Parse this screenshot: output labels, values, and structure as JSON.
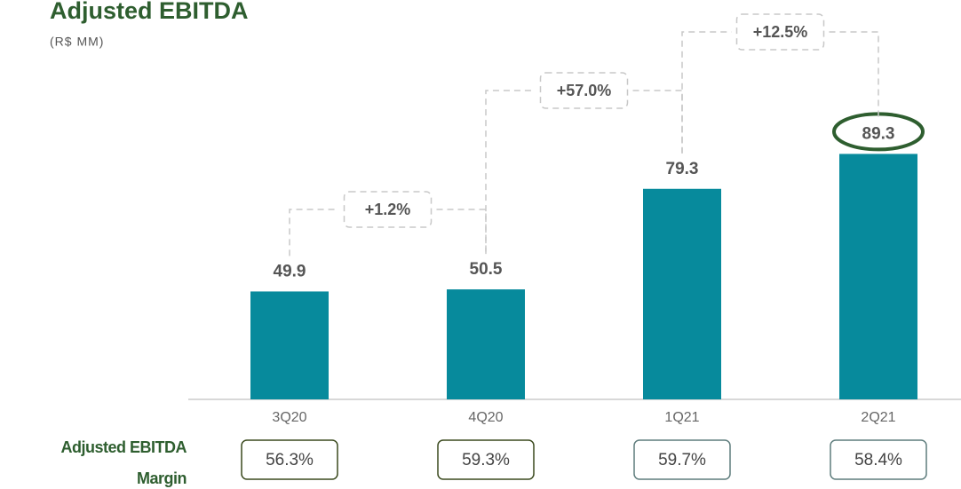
{
  "chart_data": {
    "type": "bar",
    "title": "Adjusted EBITDA",
    "subtitle": "(R$ MM)",
    "categories": [
      "3Q20",
      "4Q20",
      "1Q21",
      "2Q21"
    ],
    "values": [
      49.9,
      50.5,
      79.3,
      89.3
    ],
    "color": "#078a9c",
    "ylim": [
      19,
      95
    ],
    "changes": [
      "+1.2%",
      "+57.0%",
      "+12.5%"
    ],
    "margin_title": [
      "Adjusted EBITDA",
      "Margin"
    ],
    "margin_labels": [
      "56.3%",
      "59.3%",
      "59.7%",
      "58.4%"
    ],
    "margin_colors": [
      "#3b4a1e",
      "#3b4a1e",
      "#5f7d7d",
      "#5f7d7d"
    ]
  }
}
